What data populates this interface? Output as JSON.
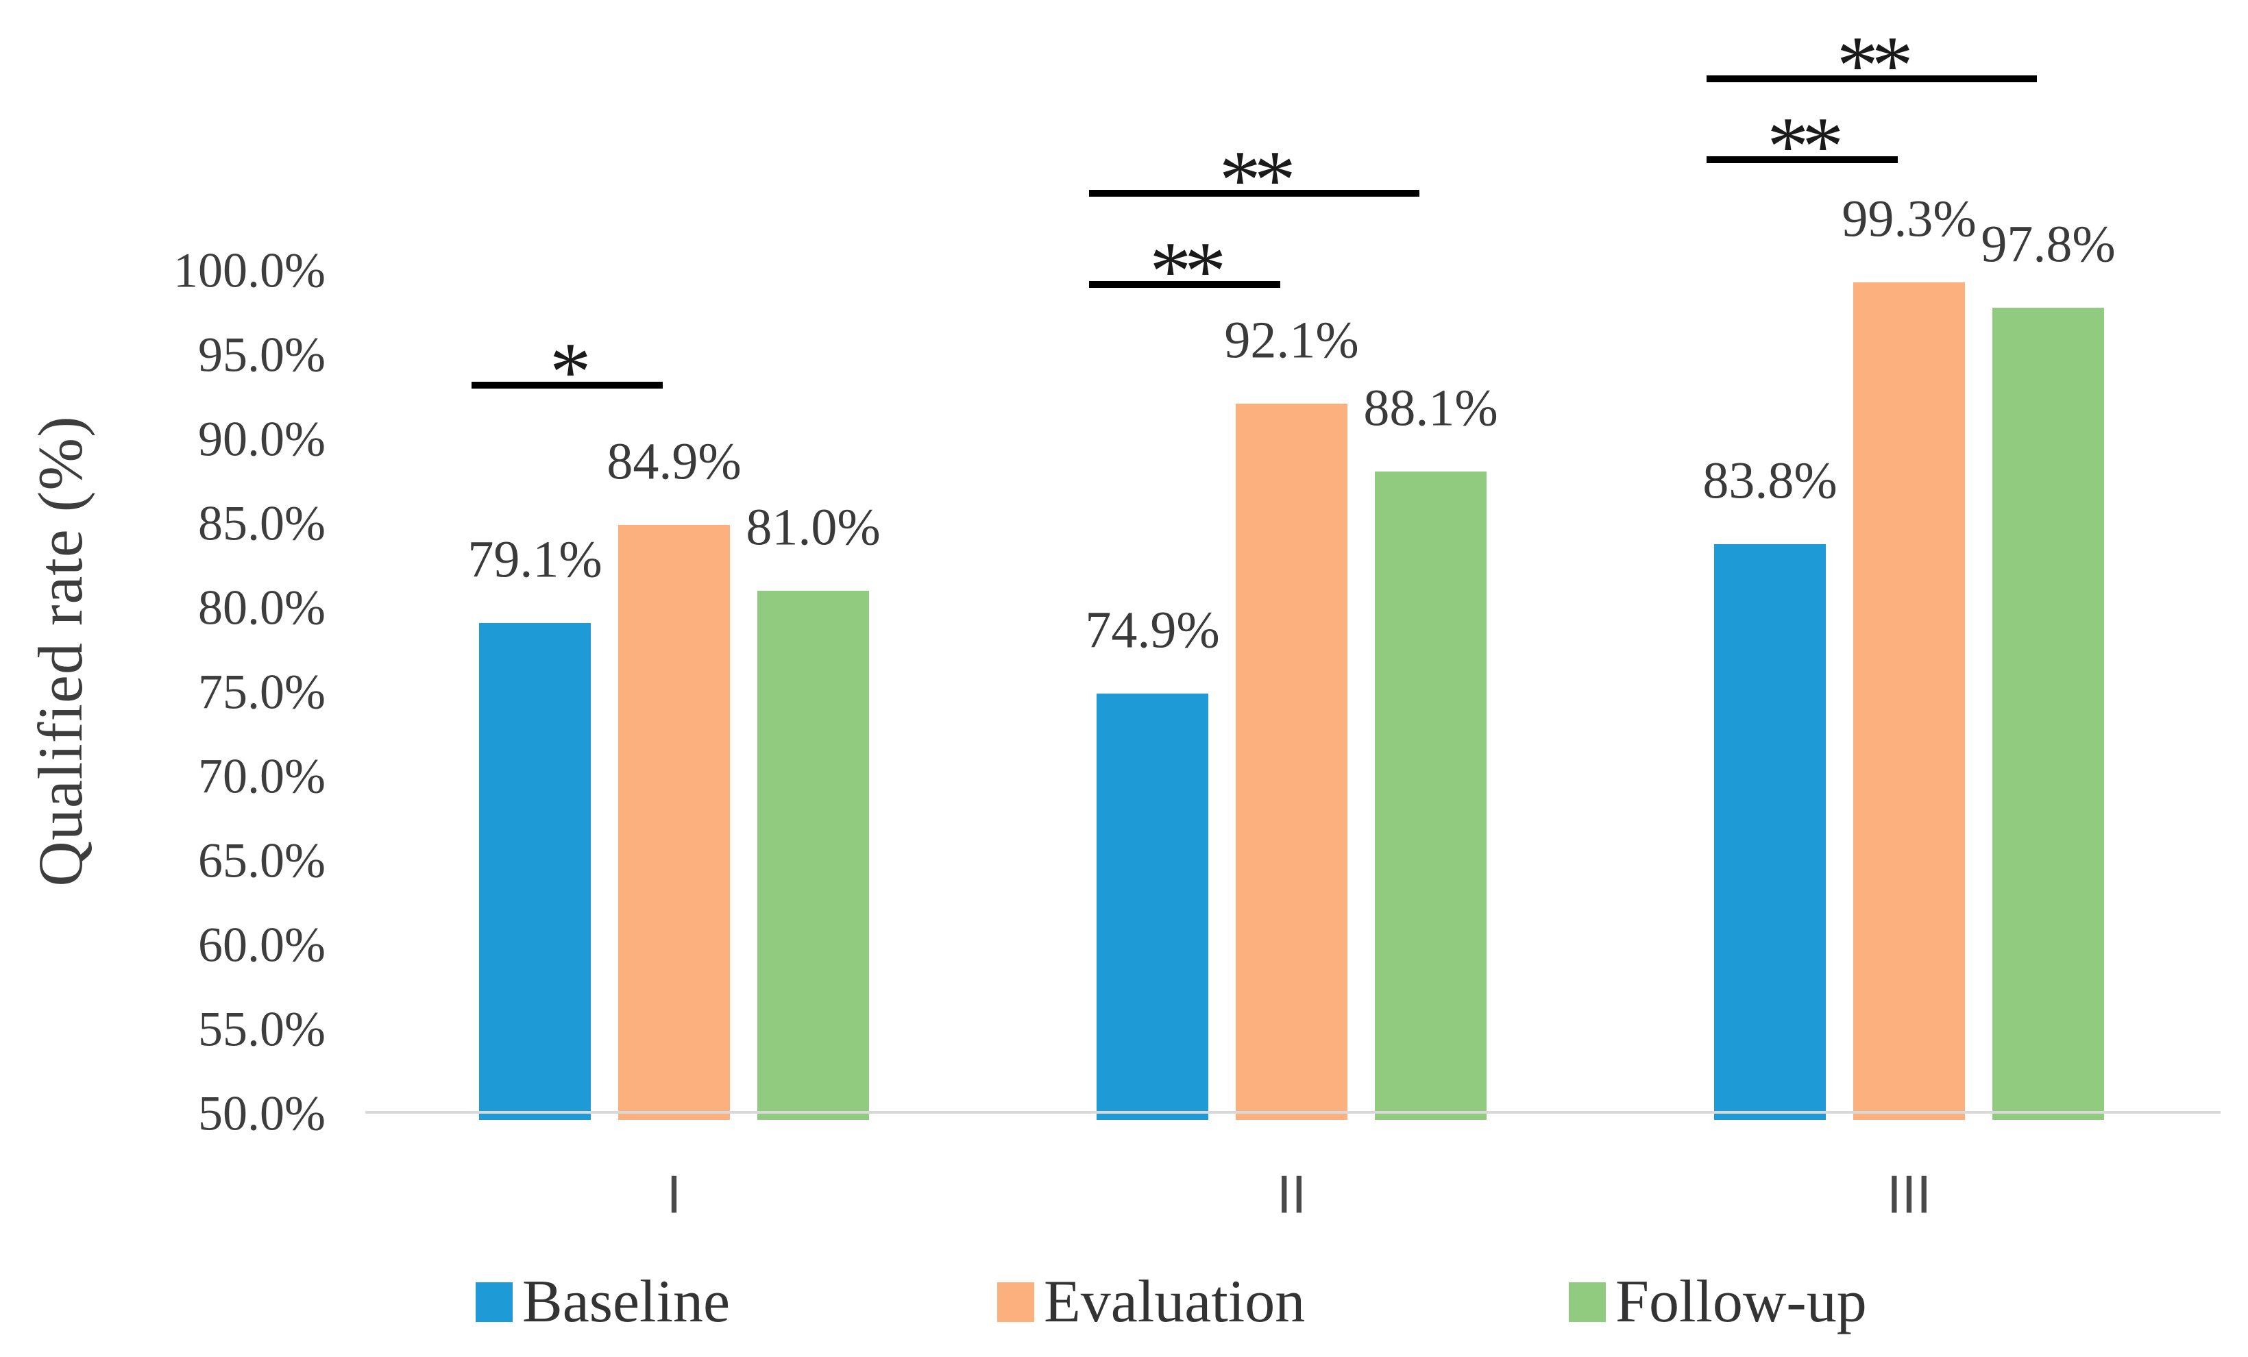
{
  "chart_data": {
    "type": "bar",
    "title": "",
    "xlabel": "",
    "ylabel": "Qualified rate (%)",
    "categories": [
      "I",
      "II",
      "III"
    ],
    "series": [
      {
        "name": "Baseline",
        "color": "#1E9AD6",
        "values": [
          79.1,
          74.9,
          83.8
        ],
        "labels": [
          "79.1%",
          "74.9%",
          "83.8%"
        ]
      },
      {
        "name": "Evaluation",
        "color": "#FBB07E",
        "values": [
          84.9,
          92.1,
          99.3
        ],
        "labels": [
          "84.9%",
          "92.1%",
          "99.3%"
        ]
      },
      {
        "name": "Follow-up",
        "color": "#90CB80",
        "values": [
          81.0,
          88.1,
          97.8
        ],
        "labels": [
          "81.0%",
          "88.1%",
          "97.8%"
        ]
      }
    ],
    "y_axis": {
      "min": 50,
      "max": 100,
      "step": 5,
      "tick_labels": [
        "100.0%",
        "95.0%",
        "90.0%",
        "85.0%",
        "80.0%",
        "75.0%",
        "70.0%",
        "65.0%",
        "60.0%",
        "55.0%",
        "50.0%"
      ]
    },
    "ylim": [
      50,
      100
    ],
    "grid": false,
    "legend_position": "bottom",
    "significance_brackets": [
      {
        "category": "I",
        "from": "Baseline",
        "to": "Evaluation",
        "marker": "*"
      },
      {
        "category": "II",
        "from": "Baseline",
        "to": "Evaluation",
        "marker": "**"
      },
      {
        "category": "II",
        "from": "Baseline",
        "to": "Follow-up",
        "marker": "**"
      },
      {
        "category": "III",
        "from": "Baseline",
        "to": "Evaluation",
        "marker": "**"
      },
      {
        "category": "III",
        "from": "Baseline",
        "to": "Follow-up",
        "marker": "**"
      }
    ],
    "axis_line_color": "#D9D9D9",
    "text_color": "#3d3d3d"
  }
}
